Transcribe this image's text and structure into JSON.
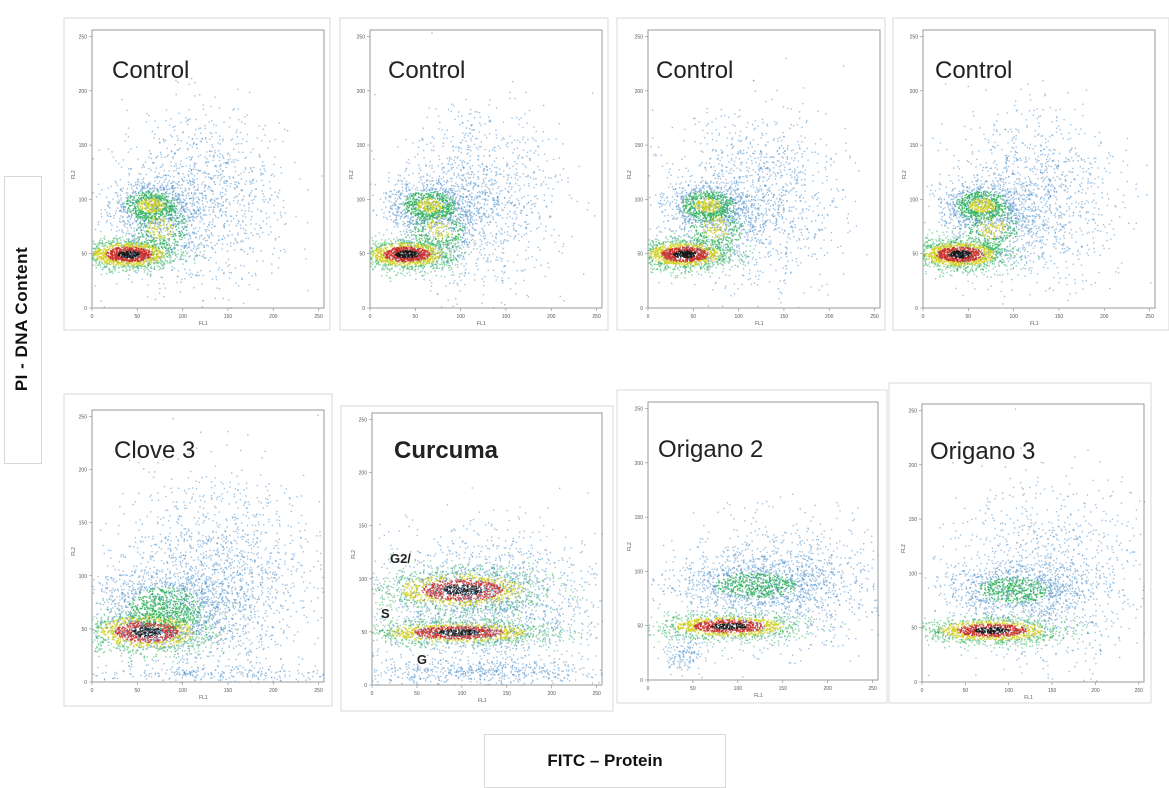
{
  "figure": {
    "ylabel": "PI - DNA Content",
    "xlabel": "FITC – Protein"
  },
  "colors": {
    "density_low": "#4f8fc8",
    "density_mid": "#2fb35a",
    "density_high": "#d0d020",
    "density_peak": "#c8302a",
    "density_core": "#151515"
  },
  "chart_data": [
    {
      "type": "scatter",
      "title": "Control",
      "panel_label_style": "normal",
      "xlim": [
        0,
        256
      ],
      "ylim": [
        0,
        256
      ],
      "xticks": [
        "0",
        "50",
        "100",
        "150",
        "200",
        "250"
      ],
      "yticks": [
        "0",
        "50",
        "100",
        "150",
        "200",
        "250"
      ],
      "xlabel": "FL1",
      "ylabel": "FL2",
      "populations": [
        {
          "name": "G",
          "x_center": 40,
          "y_center": 50,
          "x_spread": 26,
          "y_spread": 7,
          "points": 1600,
          "density": "peak"
        },
        {
          "name": "S",
          "x_center": 75,
          "y_center": 75,
          "x_spread": 22,
          "y_spread": 16,
          "points": 500,
          "density": "high"
        },
        {
          "name": "G2",
          "x_center": 65,
          "y_center": 95,
          "x_spread": 22,
          "y_spread": 10,
          "points": 900,
          "density": "high"
        },
        {
          "name": "diffuse",
          "x_center": 120,
          "y_center": 100,
          "x_spread": 45,
          "y_spread": 40,
          "points": 1200,
          "density": "low"
        }
      ]
    },
    {
      "type": "scatter",
      "title": "Control",
      "panel_label_style": "normal",
      "xlim": [
        0,
        256
      ],
      "ylim": [
        0,
        256
      ],
      "xticks": [
        "0",
        "50",
        "100",
        "150",
        "200",
        "250"
      ],
      "yticks": [
        "0",
        "50",
        "100",
        "150",
        "200",
        "250"
      ],
      "xlabel": "FL1",
      "ylabel": "FL2",
      "populations": [
        {
          "name": "G",
          "x_center": 40,
          "y_center": 50,
          "x_spread": 26,
          "y_spread": 7,
          "points": 1600,
          "density": "peak"
        },
        {
          "name": "S",
          "x_center": 75,
          "y_center": 75,
          "x_spread": 22,
          "y_spread": 16,
          "points": 500,
          "density": "high"
        },
        {
          "name": "G2",
          "x_center": 65,
          "y_center": 95,
          "x_spread": 22,
          "y_spread": 10,
          "points": 900,
          "density": "high"
        },
        {
          "name": "diffuse",
          "x_center": 120,
          "y_center": 100,
          "x_spread": 45,
          "y_spread": 40,
          "points": 1200,
          "density": "low"
        }
      ]
    },
    {
      "type": "scatter",
      "title": "Control",
      "panel_label_style": "normal",
      "xlim": [
        0,
        256
      ],
      "ylim": [
        0,
        256
      ],
      "xticks": [
        "0",
        "50",
        "100",
        "150",
        "200",
        "250"
      ],
      "yticks": [
        "0",
        "50",
        "100",
        "150",
        "200",
        "250"
      ],
      "xlabel": "FL1",
      "ylabel": "FL2",
      "populations": [
        {
          "name": "G",
          "x_center": 40,
          "y_center": 50,
          "x_spread": 26,
          "y_spread": 7,
          "points": 1600,
          "density": "peak"
        },
        {
          "name": "S",
          "x_center": 75,
          "y_center": 75,
          "x_spread": 22,
          "y_spread": 16,
          "points": 500,
          "density": "high"
        },
        {
          "name": "G2",
          "x_center": 65,
          "y_center": 95,
          "x_spread": 22,
          "y_spread": 10,
          "points": 900,
          "density": "high"
        },
        {
          "name": "diffuse",
          "x_center": 120,
          "y_center": 100,
          "x_spread": 45,
          "y_spread": 40,
          "points": 1200,
          "density": "low"
        }
      ]
    },
    {
      "type": "scatter",
      "title": "Control",
      "panel_label_style": "normal",
      "xlim": [
        0,
        256
      ],
      "ylim": [
        0,
        256
      ],
      "xticks": [
        "0",
        "50",
        "100",
        "150",
        "200",
        "250"
      ],
      "yticks": [
        "0",
        "50",
        "100",
        "150",
        "200",
        "250"
      ],
      "xlabel": "FL1",
      "ylabel": "FL2",
      "populations": [
        {
          "name": "G",
          "x_center": 40,
          "y_center": 50,
          "x_spread": 26,
          "y_spread": 7,
          "points": 1600,
          "density": "peak"
        },
        {
          "name": "S",
          "x_center": 75,
          "y_center": 75,
          "x_spread": 22,
          "y_spread": 16,
          "points": 500,
          "density": "high"
        },
        {
          "name": "G2",
          "x_center": 65,
          "y_center": 95,
          "x_spread": 22,
          "y_spread": 10,
          "points": 900,
          "density": "high"
        },
        {
          "name": "diffuse",
          "x_center": 120,
          "y_center": 100,
          "x_spread": 45,
          "y_spread": 40,
          "points": 1200,
          "density": "low"
        }
      ]
    },
    {
      "type": "scatter",
      "title": "Clove 3",
      "panel_label_style": "normal",
      "xlim": [
        0,
        256
      ],
      "ylim": [
        0,
        256
      ],
      "xticks": [
        "0",
        "50",
        "100",
        "150",
        "200",
        "250"
      ],
      "yticks": [
        "0",
        "50",
        "100",
        "150",
        "200",
        "250"
      ],
      "xlabel": "FL1",
      "ylabel": "FL2",
      "populations": [
        {
          "name": "G",
          "x_center": 60,
          "y_center": 48,
          "x_spread": 35,
          "y_spread": 10,
          "points": 1500,
          "density": "peak"
        },
        {
          "name": "S",
          "x_center": 80,
          "y_center": 70,
          "x_spread": 40,
          "y_spread": 20,
          "points": 1400,
          "density": "mid"
        },
        {
          "name": "diffuse",
          "x_center": 140,
          "y_center": 100,
          "x_spread": 55,
          "y_spread": 45,
          "points": 1600,
          "density": "low"
        },
        {
          "name": "debris",
          "x_center": 130,
          "y_center": 8,
          "x_spread": 70,
          "y_spread": 4,
          "points": 250,
          "density": "low"
        }
      ]
    },
    {
      "type": "scatter",
      "title": "Curcuma",
      "panel_label_style": "bold",
      "xlim": [
        0,
        256
      ],
      "ylim": [
        0,
        256
      ],
      "xticks": [
        "0",
        "50",
        "100",
        "150",
        "200",
        "250"
      ],
      "yticks": [
        "0",
        "50",
        "100",
        "150",
        "200",
        "250"
      ],
      "xlabel": "FL1",
      "ylabel": "FL2",
      "annotations": [
        {
          "text": "G2/",
          "x": 20,
          "y": 115
        },
        {
          "text": "S",
          "x": 10,
          "y": 63
        },
        {
          "text": "G",
          "x": 50,
          "y": 20
        }
      ],
      "populations": [
        {
          "name": "G2",
          "x_center": 100,
          "y_center": 90,
          "x_spread": 45,
          "y_spread": 10,
          "points": 1500,
          "density": "peak"
        },
        {
          "name": "G",
          "x_center": 95,
          "y_center": 50,
          "x_spread": 50,
          "y_spread": 6,
          "points": 1500,
          "density": "peak"
        },
        {
          "name": "diffuse",
          "x_center": 130,
          "y_center": 75,
          "x_spread": 65,
          "y_spread": 35,
          "points": 1800,
          "density": "low"
        },
        {
          "name": "debris",
          "x_center": 110,
          "y_center": 12,
          "x_spread": 70,
          "y_spread": 6,
          "points": 500,
          "density": "low"
        }
      ]
    },
    {
      "type": "scatter",
      "title": "Origano 2",
      "panel_label_style": "normal",
      "xlim": [
        0,
        256
      ],
      "ylim": [
        0,
        256
      ],
      "xticks": [
        "0",
        "50",
        "100",
        "150",
        "200",
        "250"
      ],
      "yticks": [
        "0",
        "50",
        "100",
        "150",
        "200",
        "250"
      ],
      "xlabel": "FL1",
      "ylabel": "FL2",
      "populations": [
        {
          "name": "G",
          "x_center": 90,
          "y_center": 50,
          "x_spread": 40,
          "y_spread": 6,
          "points": 1300,
          "density": "peak"
        },
        {
          "name": "G2",
          "x_center": 120,
          "y_center": 88,
          "x_spread": 45,
          "y_spread": 12,
          "points": 1100,
          "density": "mid"
        },
        {
          "name": "diffuse",
          "x_center": 150,
          "y_center": 90,
          "x_spread": 55,
          "y_spread": 30,
          "points": 1000,
          "density": "low"
        },
        {
          "name": "debris",
          "x_center": 40,
          "y_center": 25,
          "x_spread": 12,
          "y_spread": 8,
          "points": 150,
          "density": "low"
        }
      ]
    },
    {
      "type": "scatter",
      "title": "Origano 3",
      "panel_label_style": "normal",
      "xlim": [
        0,
        256
      ],
      "ylim": [
        0,
        256
      ],
      "xticks": [
        "0",
        "50",
        "100",
        "150",
        "200",
        "250"
      ],
      "yticks": [
        "0",
        "50",
        "100",
        "150",
        "200",
        "250"
      ],
      "xlabel": "FL1",
      "ylabel": "FL2",
      "populations": [
        {
          "name": "G",
          "x_center": 80,
          "y_center": 48,
          "x_spread": 40,
          "y_spread": 6,
          "points": 1400,
          "density": "peak"
        },
        {
          "name": "G2",
          "x_center": 105,
          "y_center": 85,
          "x_spread": 40,
          "y_spread": 12,
          "points": 1000,
          "density": "mid"
        },
        {
          "name": "diffuse",
          "x_center": 150,
          "y_center": 95,
          "x_spread": 55,
          "y_spread": 40,
          "points": 1100,
          "density": "low"
        }
      ]
    }
  ]
}
